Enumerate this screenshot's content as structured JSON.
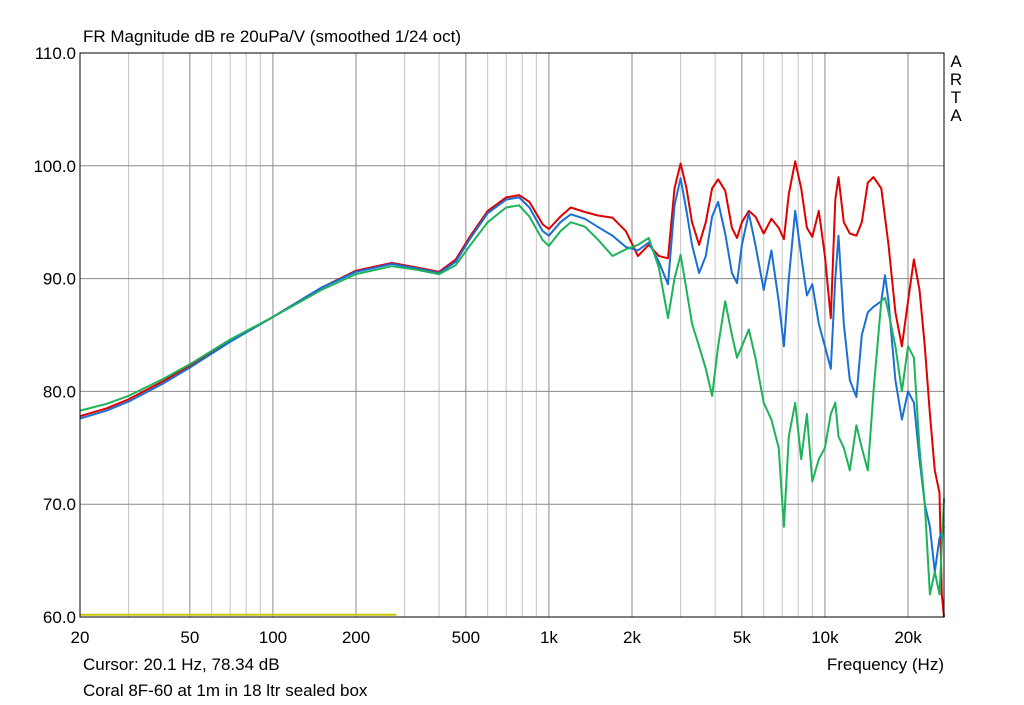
{
  "chart_data": {
    "type": "line",
    "title": "FR Magnitude dB re 20uPa/V (smoothed 1/24 oct)",
    "xlabel": "Frequency (Hz)",
    "ylabel": "",
    "x_scale": "log",
    "xlim": [
      20,
      27000
    ],
    "ylim": [
      60,
      110
    ],
    "grid": true,
    "x_ticks": [
      {
        "v": 20,
        "label": "20"
      },
      {
        "v": 50,
        "label": "50"
      },
      {
        "v": 100,
        "label": "100"
      },
      {
        "v": 200,
        "label": "200"
      },
      {
        "v": 500,
        "label": "500"
      },
      {
        "v": 1000,
        "label": "1k"
      },
      {
        "v": 2000,
        "label": "2k"
      },
      {
        "v": 5000,
        "label": "5k"
      },
      {
        "v": 10000,
        "label": "10k"
      },
      {
        "v": 20000,
        "label": "20k"
      }
    ],
    "y_ticks": [
      {
        "v": 60,
        "label": "60.0"
      },
      {
        "v": 70,
        "label": "70.0"
      },
      {
        "v": 80,
        "label": "80.0"
      },
      {
        "v": 90,
        "label": "90.0"
      },
      {
        "v": 100,
        "label": "100.0"
      },
      {
        "v": 110,
        "label": "110.0"
      }
    ],
    "series": [
      {
        "color": "#e00000",
        "points": [
          [
            20,
            77.8
          ],
          [
            25,
            78.5
          ],
          [
            30,
            79.3
          ],
          [
            40,
            80.9
          ],
          [
            50,
            82.3
          ],
          [
            70,
            84.5
          ],
          [
            100,
            86.6
          ],
          [
            150,
            89.2
          ],
          [
            200,
            90.7
          ],
          [
            270,
            91.4
          ],
          [
            330,
            91.0
          ],
          [
            400,
            90.6
          ],
          [
            460,
            91.7
          ],
          [
            520,
            93.8
          ],
          [
            600,
            96.0
          ],
          [
            700,
            97.2
          ],
          [
            780,
            97.4
          ],
          [
            850,
            96.8
          ],
          [
            950,
            94.8
          ],
          [
            1000,
            94.4
          ],
          [
            1100,
            95.5
          ],
          [
            1200,
            96.3
          ],
          [
            1350,
            95.9
          ],
          [
            1500,
            95.6
          ],
          [
            1700,
            95.4
          ],
          [
            1900,
            94.2
          ],
          [
            2100,
            92.0
          ],
          [
            2300,
            93.0
          ],
          [
            2500,
            92.0
          ],
          [
            2700,
            91.8
          ],
          [
            2850,
            98.0
          ],
          [
            3000,
            100.2
          ],
          [
            3150,
            98.0
          ],
          [
            3300,
            95.0
          ],
          [
            3500,
            93.0
          ],
          [
            3700,
            95.0
          ],
          [
            3900,
            98.0
          ],
          [
            4100,
            98.8
          ],
          [
            4350,
            97.8
          ],
          [
            4600,
            94.5
          ],
          [
            4800,
            93.6
          ],
          [
            5000,
            95.0
          ],
          [
            5300,
            96.0
          ],
          [
            5600,
            95.5
          ],
          [
            6000,
            94.0
          ],
          [
            6400,
            95.3
          ],
          [
            6800,
            94.5
          ],
          [
            7100,
            93.5
          ],
          [
            7400,
            97.5
          ],
          [
            7800,
            100.4
          ],
          [
            8200,
            98.0
          ],
          [
            8600,
            94.5
          ],
          [
            9000,
            93.7
          ],
          [
            9500,
            96.0
          ],
          [
            10000,
            92.0
          ],
          [
            10500,
            86.5
          ],
          [
            10900,
            97.0
          ],
          [
            11200,
            99.0
          ],
          [
            11700,
            95.0
          ],
          [
            12300,
            94.0
          ],
          [
            13000,
            93.8
          ],
          [
            13600,
            95.0
          ],
          [
            14300,
            98.5
          ],
          [
            15000,
            99.0
          ],
          [
            16000,
            98.0
          ],
          [
            17000,
            93.0
          ],
          [
            18000,
            87.0
          ],
          [
            19000,
            84.0
          ],
          [
            20000,
            88.0
          ],
          [
            21000,
            91.7
          ],
          [
            22000,
            89.0
          ],
          [
            23000,
            84.0
          ],
          [
            24000,
            78.0
          ],
          [
            25000,
            73.0
          ],
          [
            26000,
            71.0
          ],
          [
            26500,
            62.0
          ],
          [
            27000,
            60.0
          ]
        ]
      },
      {
        "color": "#1a6fd6",
        "points": [
          [
            20,
            77.6
          ],
          [
            25,
            78.3
          ],
          [
            30,
            79.1
          ],
          [
            40,
            80.7
          ],
          [
            50,
            82.1
          ],
          [
            70,
            84.4
          ],
          [
            100,
            86.6
          ],
          [
            150,
            89.2
          ],
          [
            200,
            90.6
          ],
          [
            270,
            91.3
          ],
          [
            330,
            90.9
          ],
          [
            400,
            90.5
          ],
          [
            460,
            91.5
          ],
          [
            520,
            93.6
          ],
          [
            600,
            95.8
          ],
          [
            700,
            97.0
          ],
          [
            780,
            97.2
          ],
          [
            850,
            96.3
          ],
          [
            950,
            94.2
          ],
          [
            1000,
            93.8
          ],
          [
            1100,
            95.0
          ],
          [
            1200,
            95.7
          ],
          [
            1350,
            95.3
          ],
          [
            1500,
            94.6
          ],
          [
            1700,
            93.8
          ],
          [
            1900,
            92.8
          ],
          [
            2100,
            92.5
          ],
          [
            2300,
            93.2
          ],
          [
            2500,
            91.5
          ],
          [
            2700,
            89.5
          ],
          [
            2850,
            96.5
          ],
          [
            3000,
            98.9
          ],
          [
            3150,
            96.0
          ],
          [
            3300,
            93.0
          ],
          [
            3500,
            90.5
          ],
          [
            3700,
            92.0
          ],
          [
            3900,
            95.5
          ],
          [
            4100,
            96.8
          ],
          [
            4350,
            94.0
          ],
          [
            4600,
            90.5
          ],
          [
            4800,
            89.6
          ],
          [
            5000,
            93.0
          ],
          [
            5300,
            95.8
          ],
          [
            5600,
            93.0
          ],
          [
            6000,
            89.0
          ],
          [
            6400,
            92.5
          ],
          [
            6800,
            88.0
          ],
          [
            7100,
            84.0
          ],
          [
            7400,
            90.0
          ],
          [
            7800,
            96.0
          ],
          [
            8200,
            92.0
          ],
          [
            8600,
            88.5
          ],
          [
            9000,
            89.5
          ],
          [
            9500,
            86.0
          ],
          [
            10000,
            84.0
          ],
          [
            10500,
            82.0
          ],
          [
            10900,
            90.0
          ],
          [
            11200,
            93.8
          ],
          [
            11700,
            86.0
          ],
          [
            12300,
            81.0
          ],
          [
            13000,
            79.5
          ],
          [
            13600,
            85.0
          ],
          [
            14300,
            87.0
          ],
          [
            15000,
            87.5
          ],
          [
            16000,
            88.0
          ],
          [
            16500,
            90.3
          ],
          [
            17000,
            88.0
          ],
          [
            18000,
            81.0
          ],
          [
            19000,
            77.5
          ],
          [
            20000,
            80.0
          ],
          [
            21000,
            79.0
          ],
          [
            22000,
            74.0
          ],
          [
            23000,
            70.0
          ],
          [
            24000,
            68.0
          ],
          [
            25000,
            64.0
          ],
          [
            26000,
            67.0
          ],
          [
            27000,
            68.0
          ]
        ]
      },
      {
        "color": "#1db35a",
        "points": [
          [
            20,
            78.3
          ],
          [
            25,
            78.9
          ],
          [
            30,
            79.6
          ],
          [
            40,
            81.1
          ],
          [
            50,
            82.4
          ],
          [
            70,
            84.6
          ],
          [
            100,
            86.6
          ],
          [
            150,
            89.0
          ],
          [
            200,
            90.4
          ],
          [
            270,
            91.1
          ],
          [
            330,
            90.8
          ],
          [
            400,
            90.4
          ],
          [
            460,
            91.2
          ],
          [
            520,
            93.0
          ],
          [
            600,
            95.0
          ],
          [
            700,
            96.3
          ],
          [
            780,
            96.5
          ],
          [
            850,
            95.5
          ],
          [
            950,
            93.4
          ],
          [
            1000,
            92.9
          ],
          [
            1100,
            94.2
          ],
          [
            1200,
            95.0
          ],
          [
            1350,
            94.6
          ],
          [
            1500,
            93.5
          ],
          [
            1700,
            92.0
          ],
          [
            1900,
            92.6
          ],
          [
            2100,
            93.0
          ],
          [
            2300,
            93.6
          ],
          [
            2500,
            91.0
          ],
          [
            2700,
            86.5
          ],
          [
            2850,
            90.0
          ],
          [
            3000,
            92.1
          ],
          [
            3150,
            89.0
          ],
          [
            3300,
            86.0
          ],
          [
            3500,
            84.0
          ],
          [
            3700,
            82.0
          ],
          [
            3900,
            79.6
          ],
          [
            4100,
            84.0
          ],
          [
            4350,
            88.0
          ],
          [
            4600,
            85.0
          ],
          [
            4800,
            83.0
          ],
          [
            5000,
            84.0
          ],
          [
            5300,
            85.5
          ],
          [
            5600,
            83.0
          ],
          [
            6000,
            79.0
          ],
          [
            6400,
            77.5
          ],
          [
            6800,
            75.0
          ],
          [
            7100,
            68.0
          ],
          [
            7400,
            76.0
          ],
          [
            7800,
            79.0
          ],
          [
            8200,
            74.0
          ],
          [
            8600,
            78.0
          ],
          [
            9000,
            72.0
          ],
          [
            9500,
            74.0
          ],
          [
            10000,
            75.0
          ],
          [
            10500,
            78.0
          ],
          [
            10900,
            79.0
          ],
          [
            11200,
            76.0
          ],
          [
            11700,
            75.0
          ],
          [
            12300,
            73.0
          ],
          [
            13000,
            77.0
          ],
          [
            13600,
            75.0
          ],
          [
            14300,
            73.0
          ],
          [
            15000,
            80.0
          ],
          [
            16000,
            88.0
          ],
          [
            16500,
            88.3
          ],
          [
            17000,
            87.0
          ],
          [
            18000,
            84.0
          ],
          [
            19000,
            80.0
          ],
          [
            20000,
            84.0
          ],
          [
            21000,
            83.0
          ],
          [
            22000,
            75.0
          ],
          [
            23000,
            70.0
          ],
          [
            24000,
            62.0
          ],
          [
            25000,
            64.0
          ],
          [
            26000,
            62.0
          ],
          [
            27000,
            70.5
          ]
        ]
      },
      {
        "color": "#c8c800",
        "points": [
          [
            20,
            60.2
          ],
          [
            280,
            60.2
          ]
        ]
      }
    ]
  },
  "side_label": "ARTA",
  "cursor_text": "Cursor: 20.1 Hz, 78.34 dB",
  "caption": "Coral 8F-60 at 1m in 18 ltr sealed box"
}
